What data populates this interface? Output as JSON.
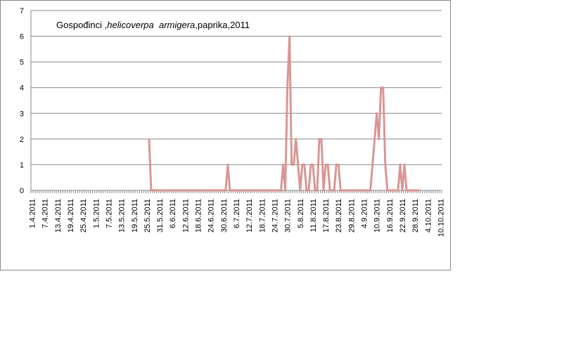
{
  "chart_data": {
    "type": "line",
    "title": [
      "Gospođinci ,",
      "helicoverpa  armigera",
      ",paprika,2011"
    ],
    "categories": [
      "1.4.2011",
      null,
      null,
      null,
      null,
      null,
      "7.4.2011",
      null,
      null,
      null,
      null,
      null,
      "13.4.2011",
      null,
      null,
      null,
      null,
      null,
      "19.4.2011",
      null,
      null,
      null,
      null,
      null,
      "25.4.2011",
      null,
      null,
      null,
      null,
      null,
      "1.5.2011",
      null,
      null,
      null,
      null,
      null,
      "7.5.2011",
      null,
      null,
      null,
      null,
      null,
      "13.5.2011",
      null,
      null,
      null,
      null,
      null,
      "19.5.2011",
      null,
      null,
      null,
      null,
      null,
      "25.5.2011",
      null,
      null,
      null,
      null,
      null,
      "31.5.2011",
      null,
      null,
      null,
      null,
      null,
      "6.6.2011",
      null,
      null,
      null,
      null,
      null,
      "12.6.2011",
      null,
      null,
      null,
      null,
      null,
      "18.6.2011",
      null,
      null,
      null,
      null,
      null,
      "24.6.2011",
      null,
      null,
      null,
      null,
      null,
      "30.6.2011",
      null,
      null,
      null,
      null,
      null,
      "6.7.2011",
      null,
      null,
      null,
      null,
      null,
      "12.7.2011",
      null,
      null,
      null,
      null,
      null,
      "18.7.2011",
      null,
      null,
      null,
      null,
      null,
      "24.7.2011",
      null,
      null,
      null,
      null,
      null,
      "30.7.2011",
      null,
      null,
      null,
      null,
      null,
      "5.8.2011",
      null,
      null,
      null,
      null,
      null,
      "11.8.2011",
      null,
      null,
      null,
      null,
      null,
      "17.8.2011",
      null,
      null,
      null,
      null,
      null,
      "23.8.2011",
      null,
      null,
      null,
      null,
      null,
      "29.8.2011",
      null,
      null,
      null,
      null,
      null,
      "4.9.2011",
      null,
      null,
      null,
      null,
      null,
      "10.9.2011",
      null,
      null,
      null,
      null,
      null,
      "16.9.2011",
      null,
      null,
      null,
      null,
      null,
      "22.9.2011",
      null,
      null,
      null,
      null,
      null,
      "28.9.2011",
      null,
      null,
      null,
      null,
      null,
      "4.10.2011",
      null,
      null,
      null,
      null,
      null,
      "10.10.2011"
    ],
    "series": [
      {
        "name": "Gospođinci",
        "color": "#d99694",
        "values": [
          null,
          null,
          null,
          null,
          null,
          null,
          null,
          null,
          null,
          null,
          null,
          null,
          null,
          null,
          null,
          null,
          null,
          null,
          null,
          null,
          null,
          null,
          null,
          null,
          null,
          null,
          null,
          null,
          null,
          null,
          null,
          null,
          null,
          null,
          null,
          null,
          null,
          null,
          null,
          null,
          null,
          null,
          null,
          null,
          null,
          null,
          null,
          null,
          null,
          null,
          null,
          null,
          null,
          null,
          null,
          2,
          0,
          0,
          0,
          0,
          0,
          0,
          0,
          0,
          0,
          0,
          0,
          0,
          0,
          0,
          0,
          0,
          0,
          0,
          0,
          0,
          0,
          0,
          0,
          0,
          0,
          0,
          0,
          0,
          0,
          0,
          0,
          0,
          0,
          0,
          0,
          0,
          1,
          0,
          0,
          0,
          0,
          0,
          0,
          0,
          0,
          0,
          0,
          0,
          0,
          0,
          0,
          0,
          0,
          0,
          0,
          0,
          0,
          0,
          0,
          0,
          0,
          0,
          1,
          0,
          4,
          6,
          1,
          1,
          2,
          1,
          0,
          1,
          1,
          0,
          0,
          1,
          1,
          0,
          0,
          2,
          2,
          0,
          1,
          1,
          0,
          0,
          0,
          1,
          1,
          0,
          0,
          0,
          0,
          0,
          0,
          0,
          0,
          0,
          0,
          0,
          0,
          0,
          0,
          0,
          1,
          2,
          3,
          2,
          4,
          4,
          1,
          0,
          0,
          0,
          0,
          0,
          0,
          1,
          0,
          1,
          0,
          0,
          0,
          0,
          0,
          0,
          0,
          null,
          null,
          null,
          null,
          null,
          null,
          null,
          null,
          null,
          null
        ]
      }
    ],
    "ylim": [
      0,
      7
    ],
    "yticks": [
      0,
      1,
      2,
      3,
      4,
      5,
      6,
      7
    ],
    "grid": true
  }
}
